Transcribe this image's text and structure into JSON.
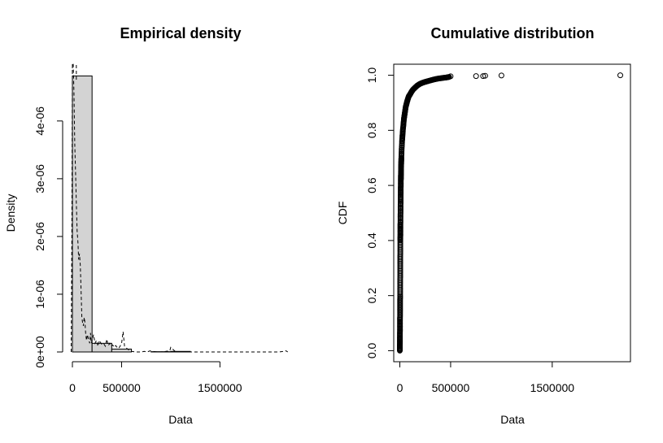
{
  "chart_data": [
    {
      "type": "bar",
      "title": "Empirical density",
      "xlabel": "Data",
      "ylabel": "Density",
      "xlim": [
        0,
        2200000
      ],
      "ylim": [
        0,
        4.8e-06
      ],
      "x_ticks": [
        0,
        500000,
        1500000
      ],
      "x_tick_labels": [
        "0",
        "500000",
        "1500000"
      ],
      "y_ticks": [
        0,
        1e-06,
        2e-06,
        3e-06,
        4e-06
      ],
      "y_tick_labels": [
        "0e+00",
        "1e-06",
        "2e-06",
        "3e-06",
        "4e-06"
      ],
      "bin_edges": [
        0,
        200000,
        400000,
        600000,
        800000,
        1000000,
        1200000,
        1400000,
        1600000,
        1800000,
        2000000,
        2200000
      ],
      "values": [
        4.78e-06,
        1.5e-07,
        5e-08,
        0,
        5e-09,
        1e-08,
        0,
        0,
        0,
        0,
        0,
        3e-09
      ],
      "bar_fill": "#d3d3d3",
      "kde_line": {
        "style": "dashed",
        "x": [
          -12000,
          -6000,
          0,
          8000,
          16000,
          24000,
          32000,
          40000,
          48000,
          56000,
          64000,
          72000,
          80000,
          88000,
          96000,
          104000,
          112000,
          120000,
          128000,
          136000,
          144000,
          152000,
          160000,
          168000,
          176000,
          184000,
          192000,
          200000,
          215000,
          230000,
          245000,
          260000,
          275000,
          290000,
          305000,
          320000,
          335000,
          350000,
          365000,
          380000,
          395000,
          410000,
          425000,
          440000,
          455000,
          470000,
          485000,
          500000,
          515000,
          530000,
          560000,
          600000,
          650000,
          700000,
          730000,
          760000,
          790000,
          820000,
          860000,
          900000,
          950000,
          990000,
          1000000,
          1050000,
          1200000,
          1500000,
          1800000,
          2100000,
          2150000,
          2170000,
          2190000
        ],
        "y": [
          0,
          2e-06,
          5e-06,
          5e-06,
          4.5e-06,
          3.6e-06,
          3.1e-06,
          2.6e-06,
          2.1e-06,
          1.9e-06,
          1.6e-06,
          1.7e-06,
          1.5e-06,
          1.1e-06,
          6e-07,
          5e-07,
          4.5e-07,
          6e-07,
          5e-07,
          3e-07,
          2e-07,
          3e-07,
          2.5e-07,
          2e-07,
          1.5e-07,
          3.3e-07,
          1.5e-07,
          2e-07,
          3e-07,
          1.5e-07,
          2e-07,
          1e-07,
          2e-07,
          1.5e-07,
          1.2e-07,
          1.4e-07,
          1e-07,
          2.2e-07,
          1.1e-07,
          1.5e-07,
          1e-07,
          1.2e-07,
          8e-08,
          1.1e-07,
          8e-08,
          6e-08,
          1e-07,
          1.5e-07,
          3.5e-07,
          1e-07,
          5e-08,
          1e-08,
          0,
          0,
          1e-08,
          0,
          2e-08,
          1e-08,
          0,
          0,
          1e-08,
          2e-08,
          8e-08,
          0,
          0,
          0,
          0,
          0,
          1e-08,
          2e-08,
          0
        ]
      }
    },
    {
      "type": "scatter",
      "title": "Cumulative distribution",
      "xlabel": "Data",
      "ylabel": "CDF",
      "xlim": [
        -60000,
        2270000
      ],
      "ylim": [
        -0.04,
        1.04
      ],
      "x_ticks": [
        0,
        500000,
        1500000
      ],
      "x_tick_labels": [
        "0",
        "500000",
        "1500000"
      ],
      "y_ticks": [
        0.0,
        0.2,
        0.4,
        0.6,
        0.8,
        1.0
      ],
      "y_tick_labels": [
        "0.0",
        "0.2",
        "0.4",
        "0.6",
        "0.8",
        "1.0"
      ],
      "marker": "open-circle",
      "curve": {
        "x": [
          0,
          1000,
          2000,
          3000,
          4000,
          5000,
          6000,
          8000,
          10000,
          12000,
          15000,
          18000,
          22000,
          26000,
          30000,
          35000,
          40000,
          46000,
          52000,
          58000,
          65000,
          72000,
          80000,
          90000,
          100000,
          115000,
          130000,
          150000,
          170000,
          195000,
          225000,
          260000,
          300000,
          340000,
          380000,
          420000,
          460000,
          490000
        ],
        "y": [
          0.0,
          0.05,
          0.12,
          0.2,
          0.3,
          0.4,
          0.46,
          0.55,
          0.62,
          0.66,
          0.7,
          0.73,
          0.76,
          0.78,
          0.8,
          0.82,
          0.84,
          0.855,
          0.87,
          0.885,
          0.895,
          0.905,
          0.915,
          0.925,
          0.93,
          0.94,
          0.948,
          0.955,
          0.962,
          0.968,
          0.973,
          0.977,
          0.981,
          0.985,
          0.988,
          0.99,
          0.992,
          0.994
        ]
      },
      "outliers": {
        "x": [
          500000,
          750000,
          820000,
          840000,
          1000000,
          2170000
        ],
        "y": [
          0.996,
          0.997,
          0.997,
          0.998,
          0.999,
          1.0
        ]
      }
    }
  ]
}
